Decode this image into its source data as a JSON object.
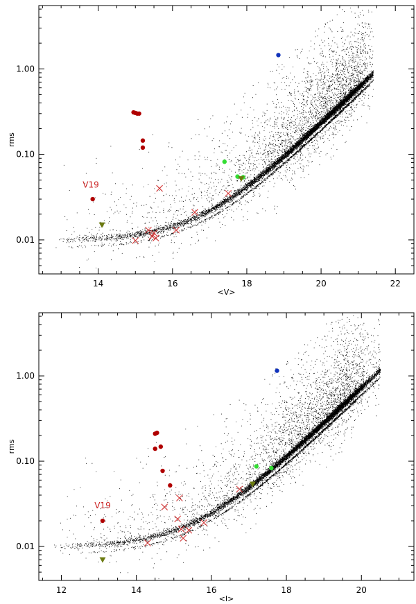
{
  "colors": {
    "background": "#ffffff",
    "axis": "#000000",
    "field_stars": "#000000",
    "red_points": "#b00000",
    "red_crosses": "#d43a3a",
    "green_points": "#33dd33",
    "blue_point": "#1133bb",
    "triangles": "#6b7a10",
    "annotation": "#cc2222"
  },
  "chart_data": [
    {
      "type": "scatter",
      "xlabel": "<V>",
      "ylabel": "rms",
      "xlim": [
        12.4,
        22.5
      ],
      "ylim": [
        0.004,
        5.5
      ],
      "yscale": "log",
      "xticks": [
        14,
        16,
        18,
        20,
        22
      ],
      "yticks": [
        0.01,
        0.1,
        1.0
      ],
      "ytick_labels": [
        "0.01",
        "0.10",
        "1.00"
      ],
      "grid": false,
      "annotations": [
        {
          "text": "V19",
          "x": 13.8,
          "y": 0.041
        }
      ],
      "field_stars": {
        "count": 12000,
        "mag_min": 12.8,
        "mag_max": 21.4,
        "sequence_mag": 21.0
      },
      "series": [
        {
          "marker": "filled-circle",
          "color": "red",
          "points": [
            [
              13.85,
              0.03
            ],
            [
              14.95,
              0.31
            ],
            [
              15.0,
              0.305
            ],
            [
              15.05,
              0.3
            ],
            [
              15.1,
              0.3
            ],
            [
              15.2,
              0.145
            ],
            [
              15.2,
              0.12
            ]
          ]
        },
        {
          "marker": "cross",
          "color": "red",
          "points": [
            [
              15.0,
              0.0098
            ],
            [
              15.35,
              0.013
            ],
            [
              15.45,
              0.011
            ],
            [
              15.5,
              0.012
            ],
            [
              15.55,
              0.0105
            ],
            [
              15.65,
              0.04
            ],
            [
              16.1,
              0.013
            ],
            [
              16.6,
              0.021
            ],
            [
              17.5,
              0.035
            ]
          ]
        },
        {
          "marker": "filled-circle",
          "color": "green",
          "points": [
            [
              17.4,
              0.082
            ],
            [
              17.75,
              0.055
            ],
            [
              17.9,
              0.054
            ]
          ]
        },
        {
          "marker": "filled-circle",
          "color": "blue",
          "points": [
            [
              18.85,
              1.45
            ]
          ]
        },
        {
          "marker": "triangle-down",
          "color": "olive",
          "points": [
            [
              14.1,
              0.015
            ],
            [
              17.85,
              0.052
            ]
          ]
        }
      ]
    },
    {
      "type": "scatter",
      "xlabel": "<I>",
      "ylabel": "rms",
      "xlim": [
        11.4,
        21.4
      ],
      "ylim": [
        0.004,
        5.5
      ],
      "yscale": "log",
      "xticks": [
        12,
        14,
        16,
        18,
        20
      ],
      "yticks": [
        0.01,
        0.1,
        1.0
      ],
      "ytick_labels": [
        "0.01",
        "0.10",
        "1.00"
      ],
      "grid": false,
      "annotations": [
        {
          "text": "V19",
          "x": 13.1,
          "y": 0.028
        }
      ],
      "field_stars": {
        "count": 12000,
        "mag_min": 11.7,
        "mag_max": 20.5,
        "sequence_mag": 19.8
      },
      "series": [
        {
          "marker": "filled-circle",
          "color": "red",
          "points": [
            [
              13.1,
              0.02
            ],
            [
              14.5,
              0.21
            ],
            [
              14.55,
              0.215
            ],
            [
              14.5,
              0.14
            ],
            [
              14.65,
              0.148
            ],
            [
              14.7,
              0.077
            ],
            [
              14.9,
              0.052
            ]
          ]
        },
        {
          "marker": "cross",
          "color": "red",
          "points": [
            [
              14.3,
              0.011
            ],
            [
              14.75,
              0.029
            ],
            [
              15.1,
              0.021
            ],
            [
              15.15,
              0.037
            ],
            [
              15.2,
              0.016
            ],
            [
              15.25,
              0.0125
            ],
            [
              15.4,
              0.0155
            ],
            [
              15.8,
              0.019
            ],
            [
              16.75,
              0.047
            ]
          ]
        },
        {
          "marker": "filled-circle",
          "color": "green",
          "points": [
            [
              17.2,
              0.087
            ],
            [
              17.6,
              0.083
            ]
          ]
        },
        {
          "marker": "filled-circle",
          "color": "blue",
          "points": [
            [
              17.75,
              1.15
            ]
          ]
        },
        {
          "marker": "triangle-down",
          "color": "olive",
          "points": [
            [
              13.1,
              0.007
            ],
            [
              17.1,
              0.054
            ]
          ]
        }
      ]
    }
  ]
}
